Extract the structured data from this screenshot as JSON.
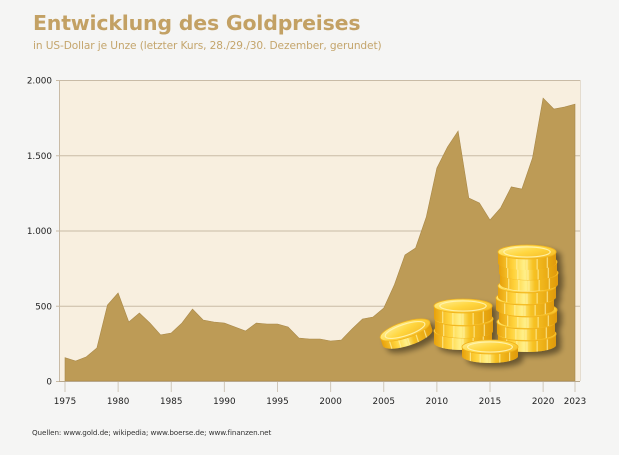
{
  "header": {
    "title": "Entwicklung des Goldpreises",
    "subtitle": "in US-Dollar je Unze (letzter Kurs, 28./29./30. Dezember, gerundet)"
  },
  "footer": {
    "source": "Quellen: www.gold.de; wikipedia; www.boerse.de; www.finanzen.net"
  },
  "colors": {
    "area_fill": "#bd9b56",
    "plot_background": "#f8efdf",
    "gridline": "#c9bba6",
    "page_background": "#f5f5f4",
    "title": "#c3a164",
    "coin_gold": "#f6c22a"
  },
  "decoration": {
    "image": "stacks of gold coins (illustration)"
  },
  "chart_data": {
    "type": "area",
    "title": "Entwicklung des Goldpreises",
    "subtitle": "in US-Dollar je Unze (letzter Kurs, 28./29./30. Dezember, gerundet)",
    "xlabel": "",
    "ylabel": "",
    "ylim": [
      0,
      2000
    ],
    "xlim": [
      1975,
      2023
    ],
    "grid": true,
    "legend": "none",
    "y_ticks": [
      0,
      500,
      1000,
      1500,
      2000
    ],
    "y_tick_labels": [
      "0",
      "500",
      "1.000",
      "1.500",
      "2.000"
    ],
    "x_ticks": [
      1975,
      1980,
      1985,
      1990,
      1995,
      2000,
      2005,
      2010,
      2015,
      2020,
      2023
    ],
    "x_tick_labels": [
      "1975",
      "1980",
      "1985",
      "1990",
      "1995",
      "2000",
      "2005",
      "2010",
      "2015",
      "2020",
      "2023"
    ],
    "x": [
      1975,
      1976,
      1977,
      1978,
      1979,
      1980,
      1981,
      1982,
      1983,
      1984,
      1985,
      1986,
      1987,
      1988,
      1989,
      1990,
      1991,
      1992,
      1993,
      1994,
      1995,
      1996,
      1997,
      1998,
      1999,
      2000,
      2001,
      2002,
      2003,
      2004,
      2005,
      2006,
      2007,
      2008,
      2009,
      2010,
      2011,
      2012,
      2013,
      2014,
      2015,
      2016,
      2017,
      2018,
      2019,
      2020,
      2021,
      2022,
      2023
    ],
    "series": [
      {
        "name": "Goldpreis (USD/Unze)",
        "values": [
          155,
          133,
          160,
          219,
          505,
          585,
          392,
          452,
          385,
          306,
          319,
          385,
          478,
          405,
          392,
          385,
          359,
          332,
          385,
          379,
          379,
          359,
          286,
          279,
          279,
          266,
          272,
          345,
          412,
          425,
          485,
          640,
          837,
          884,
          1090,
          1415,
          1555,
          1661,
          1216,
          1183,
          1070,
          1150,
          1290,
          1276,
          1482,
          1880,
          1807,
          1820,
          1840
        ]
      }
    ],
    "annotations": [
      "Quellen: www.gold.de; wikipedia; www.boerse.de; www.finanzen.net"
    ]
  }
}
